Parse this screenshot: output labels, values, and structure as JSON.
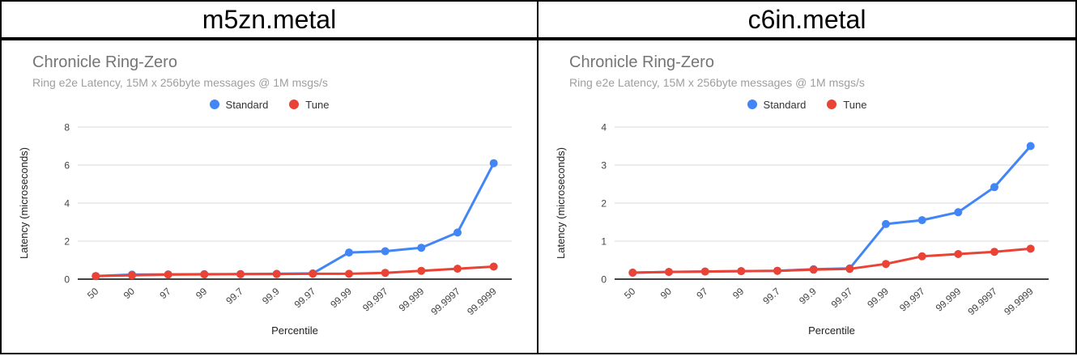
{
  "table": {
    "column_headers": [
      "m5zn.metal",
      "c6in.metal"
    ]
  },
  "chart_data": [
    {
      "type": "line",
      "title": "Chronicle Ring-Zero",
      "subtitle": "Ring e2e Latency, 15M x 256byte messages @ 1M msgs/s",
      "xlabel": "Percentile",
      "ylabel": "Latency (microseconds)",
      "legend_position": "top",
      "grid": true,
      "categories": [
        "50",
        "90",
        "97",
        "99",
        "99.7",
        "99.9",
        "99.97",
        "99.99",
        "99.997",
        "99.999",
        "99.9997",
        "99.9999"
      ],
      "ylim": [
        0,
        8
      ],
      "yticks": [
        0,
        2,
        4,
        6,
        8
      ],
      "series": [
        {
          "name": "Standard",
          "color": "#4285F4",
          "values": [
            0.16,
            0.24,
            0.25,
            0.26,
            0.27,
            0.28,
            0.3,
            1.4,
            1.47,
            1.65,
            2.45,
            6.1
          ]
        },
        {
          "name": "Tune",
          "color": "#EA4335",
          "values": [
            0.16,
            0.2,
            0.24,
            0.25,
            0.26,
            0.27,
            0.28,
            0.28,
            0.33,
            0.44,
            0.55,
            0.66
          ]
        }
      ]
    },
    {
      "type": "line",
      "title": "Chronicle Ring-Zero",
      "subtitle": "Ring e2e Latency, 15M x 256byte messages @ 1M msgs/s",
      "xlabel": "Percentile",
      "ylabel": "Latency (microseconds)",
      "legend_position": "top",
      "grid": true,
      "categories": [
        "50",
        "90",
        "97",
        "99",
        "99.7",
        "99.9",
        "99.97",
        "99.99",
        "99.997",
        "99.999",
        "99.9997",
        "99.9999"
      ],
      "ylim": [
        0,
        4
      ],
      "yticks": [
        0,
        1,
        2,
        3,
        4
      ],
      "series": [
        {
          "name": "Standard",
          "color": "#4285F4",
          "values": [
            0.17,
            0.19,
            0.2,
            0.21,
            0.22,
            0.26,
            0.28,
            1.45,
            1.55,
            1.76,
            2.42,
            3.5
          ]
        },
        {
          "name": "Tune",
          "color": "#EA4335",
          "values": [
            0.17,
            0.19,
            0.2,
            0.21,
            0.22,
            0.25,
            0.27,
            0.4,
            0.6,
            0.66,
            0.72,
            0.8
          ]
        }
      ]
    }
  ],
  "colors": {
    "standard_blue": "#4285F4",
    "tune_red": "#EA4335",
    "gridline": "#d9d9d9",
    "axis_line": "#424242"
  }
}
